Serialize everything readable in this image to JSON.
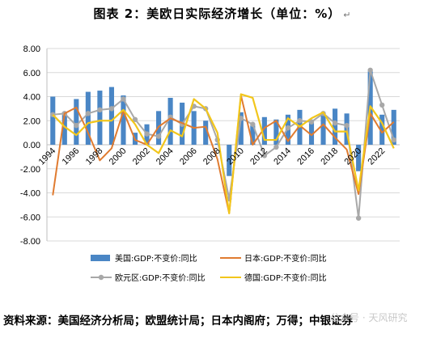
{
  "title": "图表 2：美欧日实际经济增长（单位：%）",
  "para_mark": "↵",
  "source": "资料来源：美国经济分析局；欧盟统计局；日本内阁府；万得；中银证券",
  "watermark": "公众号 · 天风研究",
  "chart_data": {
    "type": "bar",
    "x": [
      1994,
      1995,
      1996,
      1997,
      1998,
      1999,
      2000,
      2001,
      2002,
      2003,
      2004,
      2005,
      2006,
      2007,
      2008,
      2009,
      2010,
      2011,
      2012,
      2013,
      2014,
      2015,
      2016,
      2017,
      2018,
      2019,
      2020,
      2021,
      2022,
      2023
    ],
    "x_tick_labels": [
      "1994",
      "1996",
      "1998",
      "2000",
      "2002",
      "2004",
      "2006",
      "2008",
      "2010",
      "2012",
      "2014",
      "2016",
      "2018",
      "2020",
      "2022"
    ],
    "ylim": [
      -8,
      8
    ],
    "y_tick_labels": [
      "8.00",
      "6.00",
      "4.00",
      "2.00",
      "0.00",
      "-2.00",
      "-4.00",
      "-6.00",
      "-8.00"
    ],
    "grid": true,
    "legend_position": "bottom",
    "colors": {
      "us": "#4a86c5",
      "japan": "#e07b30",
      "euro": "#a8a8a8",
      "germany": "#f2c61b",
      "axis": "#bfbfbf"
    },
    "series": [
      {
        "name": "美国:GDP:不变价:同比",
        "type": "bar",
        "values": [
          4.0,
          2.7,
          3.8,
          4.4,
          4.5,
          4.8,
          4.1,
          1.0,
          1.7,
          2.8,
          3.9,
          3.5,
          2.8,
          2.0,
          0.1,
          -2.6,
          2.7,
          1.6,
          2.3,
          2.1,
          2.5,
          2.9,
          1.8,
          2.5,
          3.0,
          2.6,
          -2.2,
          6.1,
          2.5,
          2.9
        ]
      },
      {
        "name": "日本:GDP:不变价:同比",
        "type": "line",
        "values": [
          -4.2,
          2.6,
          3.1,
          1.0,
          -1.3,
          -0.3,
          2.8,
          0.4,
          0.0,
          1.5,
          2.2,
          1.8,
          1.4,
          1.5,
          -1.2,
          -5.7,
          4.1,
          0.0,
          1.4,
          2.0,
          0.3,
          1.6,
          0.8,
          1.7,
          0.6,
          -0.4,
          -4.1,
          2.6,
          1.0,
          1.9
        ]
      },
      {
        "name": "欧元区:GDP:不变价:同比",
        "type": "line",
        "marker": "circle",
        "values": [
          2.5,
          2.6,
          1.6,
          2.6,
          2.9,
          3.0,
          3.8,
          2.1,
          0.9,
          0.7,
          2.3,
          1.7,
          3.2,
          3.0,
          0.4,
          -4.5,
          2.2,
          1.7,
          -0.9,
          -0.2,
          1.4,
          2.0,
          1.9,
          2.6,
          1.8,
          1.6,
          -6.1,
          6.2,
          3.3,
          0.4
        ]
      },
      {
        "name": "德国:GDP:不变价:同比",
        "type": "line",
        "values": [
          2.5,
          1.5,
          0.8,
          1.8,
          2.0,
          2.0,
          2.9,
          1.7,
          0.0,
          -0.7,
          1.2,
          0.7,
          3.8,
          3.0,
          1.0,
          -5.7,
          4.2,
          3.9,
          0.4,
          0.4,
          2.2,
          1.5,
          2.2,
          2.7,
          1.1,
          1.1,
          -3.8,
          3.2,
          1.8,
          -0.3
        ]
      }
    ]
  }
}
